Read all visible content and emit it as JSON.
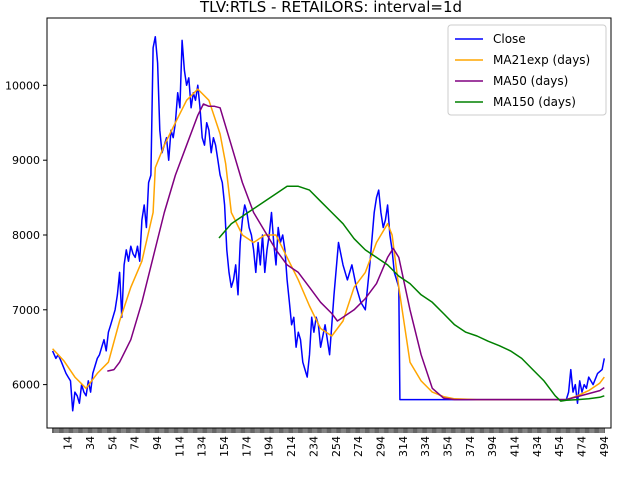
{
  "chart_data": {
    "type": "line",
    "title": "TLV:RTLS - RETAILORS: interval=1d",
    "xlabel": "",
    "ylabel": "",
    "xlim": [
      -5,
      500
    ],
    "ylim": [
      5420,
      10900
    ],
    "grid": false,
    "legend_position": "top-right",
    "x_ticks": [
      14,
      34,
      54,
      74,
      94,
      114,
      134,
      154,
      174,
      194,
      214,
      234,
      254,
      274,
      294,
      314,
      334,
      354,
      374,
      394,
      414,
      434,
      454,
      474,
      494
    ],
    "y_ticks": [
      6000,
      7000,
      8000,
      9000,
      10000
    ],
    "y_tick_labels": [
      "6000",
      "7000",
      "8000",
      "9000",
      "10000"
    ],
    "series": [
      {
        "name": "Close",
        "color": "#0000ff",
        "x": [
          0,
          3,
          5,
          8,
          12,
          14,
          16,
          18,
          20,
          22,
          24,
          26,
          28,
          30,
          32,
          34,
          36,
          40,
          42,
          44,
          46,
          48,
          50,
          52,
          54,
          56,
          58,
          60,
          62,
          64,
          66,
          68,
          70,
          72,
          74,
          76,
          78,
          80,
          82,
          84,
          86,
          88,
          90,
          92,
          94,
          96,
          98,
          100,
          102,
          104,
          106,
          108,
          110,
          112,
          114,
          116,
          118,
          120,
          122,
          124,
          126,
          128,
          130,
          132,
          134,
          136,
          138,
          140,
          142,
          144,
          146,
          148,
          150,
          152,
          154,
          156,
          158,
          160,
          162,
          164,
          166,
          168,
          170,
          172,
          174,
          176,
          178,
          180,
          182,
          184,
          186,
          188,
          190,
          192,
          194,
          196,
          198,
          200,
          202,
          204,
          206,
          208,
          210,
          212,
          214,
          216,
          218,
          220,
          222,
          224,
          226,
          228,
          230,
          232,
          234,
          236,
          238,
          240,
          244,
          248,
          252,
          256,
          260,
          264,
          268,
          272,
          276,
          280,
          284,
          288,
          290,
          292,
          294,
          296,
          298,
          300,
          302,
          304,
          306,
          308,
          310,
          311,
          314,
          334,
          354,
          374,
          394,
          414,
          434,
          454,
          460,
          462,
          464,
          466,
          468,
          470,
          472,
          474,
          476,
          478,
          480,
          484,
          488,
          492,
          494
        ],
        "y": [
          6450,
          6350,
          6400,
          6300,
          6150,
          6100,
          6050,
          5650,
          5900,
          5850,
          5750,
          6000,
          5900,
          5850,
          6050,
          5900,
          6150,
          6350,
          6400,
          6500,
          6600,
          6450,
          6700,
          6800,
          6900,
          7000,
          7200,
          7500,
          6900,
          7600,
          7800,
          7650,
          7850,
          7750,
          7700,
          7850,
          7650,
          8200,
          8400,
          8100,
          8700,
          8800,
          10500,
          10650,
          10300,
          9400,
          9100,
          9200,
          9300,
          9000,
          9400,
          9300,
          9500,
          9900,
          9700,
          10600,
          10200,
          10000,
          10100,
          9700,
          9900,
          9800,
          10000,
          9700,
          9300,
          9200,
          9500,
          9400,
          9100,
          9300,
          9200,
          9000,
          8800,
          8700,
          8400,
          7800,
          7500,
          7300,
          7400,
          7600,
          7200,
          7900,
          8200,
          8400,
          8300,
          8100,
          8000,
          7800,
          7500,
          7900,
          7600,
          8000,
          7500,
          7800,
          8000,
          8300,
          7900,
          7600,
          8100,
          7900,
          8000,
          7800,
          7400,
          7100,
          6800,
          6900,
          6500,
          6700,
          6600,
          6300,
          6200,
          6100,
          6400,
          6900,
          6700,
          6900,
          6800,
          6500,
          6800,
          6400,
          7200,
          7900,
          7600,
          7400,
          7600,
          7300,
          7100,
          7000,
          7600,
          8300,
          8500,
          8600,
          8300,
          8100,
          8200,
          8400,
          8000,
          7800,
          7500,
          7400,
          7300,
          5800,
          5800,
          5800,
          5800,
          5800,
          5800,
          5800,
          5800,
          5800,
          5800,
          5900,
          6200,
          5900,
          6000,
          5750,
          6050,
          5900,
          6000,
          5950,
          6100,
          6000,
          6150,
          6200,
          6350
        ]
      },
      {
        "name": "MA21exp (days)",
        "color": "#ffa500",
        "x": [
          0,
          10,
          20,
          30,
          40,
          50,
          60,
          70,
          80,
          90,
          92,
          100,
          110,
          120,
          130,
          140,
          150,
          155,
          160,
          170,
          180,
          190,
          200,
          210,
          220,
          230,
          235,
          240,
          250,
          260,
          270,
          280,
          290,
          300,
          304,
          310,
          320,
          330,
          340,
          350,
          360,
          380,
          400,
          420,
          440,
          460,
          470,
          480,
          490,
          494
        ],
        "y": [
          6480,
          6320,
          6100,
          5950,
          6150,
          6300,
          6850,
          7300,
          7650,
          8300,
          8900,
          9200,
          9500,
          9800,
          9950,
          9800,
          9350,
          8950,
          8300,
          8000,
          7900,
          8000,
          8000,
          7700,
          7400,
          7050,
          6900,
          6750,
          6650,
          6850,
          7300,
          7500,
          7900,
          8150,
          8000,
          7300,
          6300,
          6050,
          5900,
          5840,
          5810,
          5800,
          5800,
          5800,
          5800,
          5800,
          5850,
          5920,
          6020,
          6100
        ]
      },
      {
        "name": "MA50 (days)",
        "color": "#800080",
        "x": [
          49,
          55,
          60,
          70,
          80,
          90,
          100,
          110,
          120,
          130,
          135,
          140,
          145,
          150,
          160,
          170,
          180,
          190,
          200,
          210,
          220,
          230,
          240,
          250,
          255,
          260,
          270,
          280,
          290,
          300,
          305,
          310,
          320,
          330,
          340,
          350,
          360,
          380,
          400,
          420,
          440,
          460,
          470,
          480,
          490,
          494
        ],
        "y": [
          6180,
          6200,
          6300,
          6600,
          7100,
          7700,
          8300,
          8800,
          9200,
          9600,
          9750,
          9720,
          9720,
          9700,
          9200,
          8700,
          8300,
          8050,
          7800,
          7600,
          7500,
          7300,
          7100,
          6950,
          6850,
          6900,
          7000,
          7150,
          7350,
          7700,
          7820,
          7700,
          7000,
          6400,
          5950,
          5820,
          5800,
          5800,
          5800,
          5800,
          5800,
          5800,
          5840,
          5880,
          5920,
          5960
        ]
      },
      {
        "name": "MA150 (days)",
        "color": "#008000",
        "x": [
          149,
          160,
          170,
          180,
          190,
          200,
          210,
          220,
          230,
          240,
          250,
          260,
          270,
          280,
          290,
          300,
          310,
          320,
          330,
          340,
          350,
          360,
          370,
          380,
          390,
          400,
          410,
          420,
          430,
          440,
          450,
          455,
          460,
          470,
          480,
          490,
          494
        ],
        "y": [
          7960,
          8150,
          8250,
          8350,
          8450,
          8550,
          8650,
          8650,
          8600,
          8450,
          8300,
          8150,
          7950,
          7800,
          7700,
          7600,
          7450,
          7350,
          7200,
          7100,
          6950,
          6800,
          6700,
          6650,
          6580,
          6520,
          6450,
          6350,
          6200,
          6050,
          5850,
          5780,
          5790,
          5800,
          5810,
          5830,
          5850
        ]
      }
    ]
  }
}
